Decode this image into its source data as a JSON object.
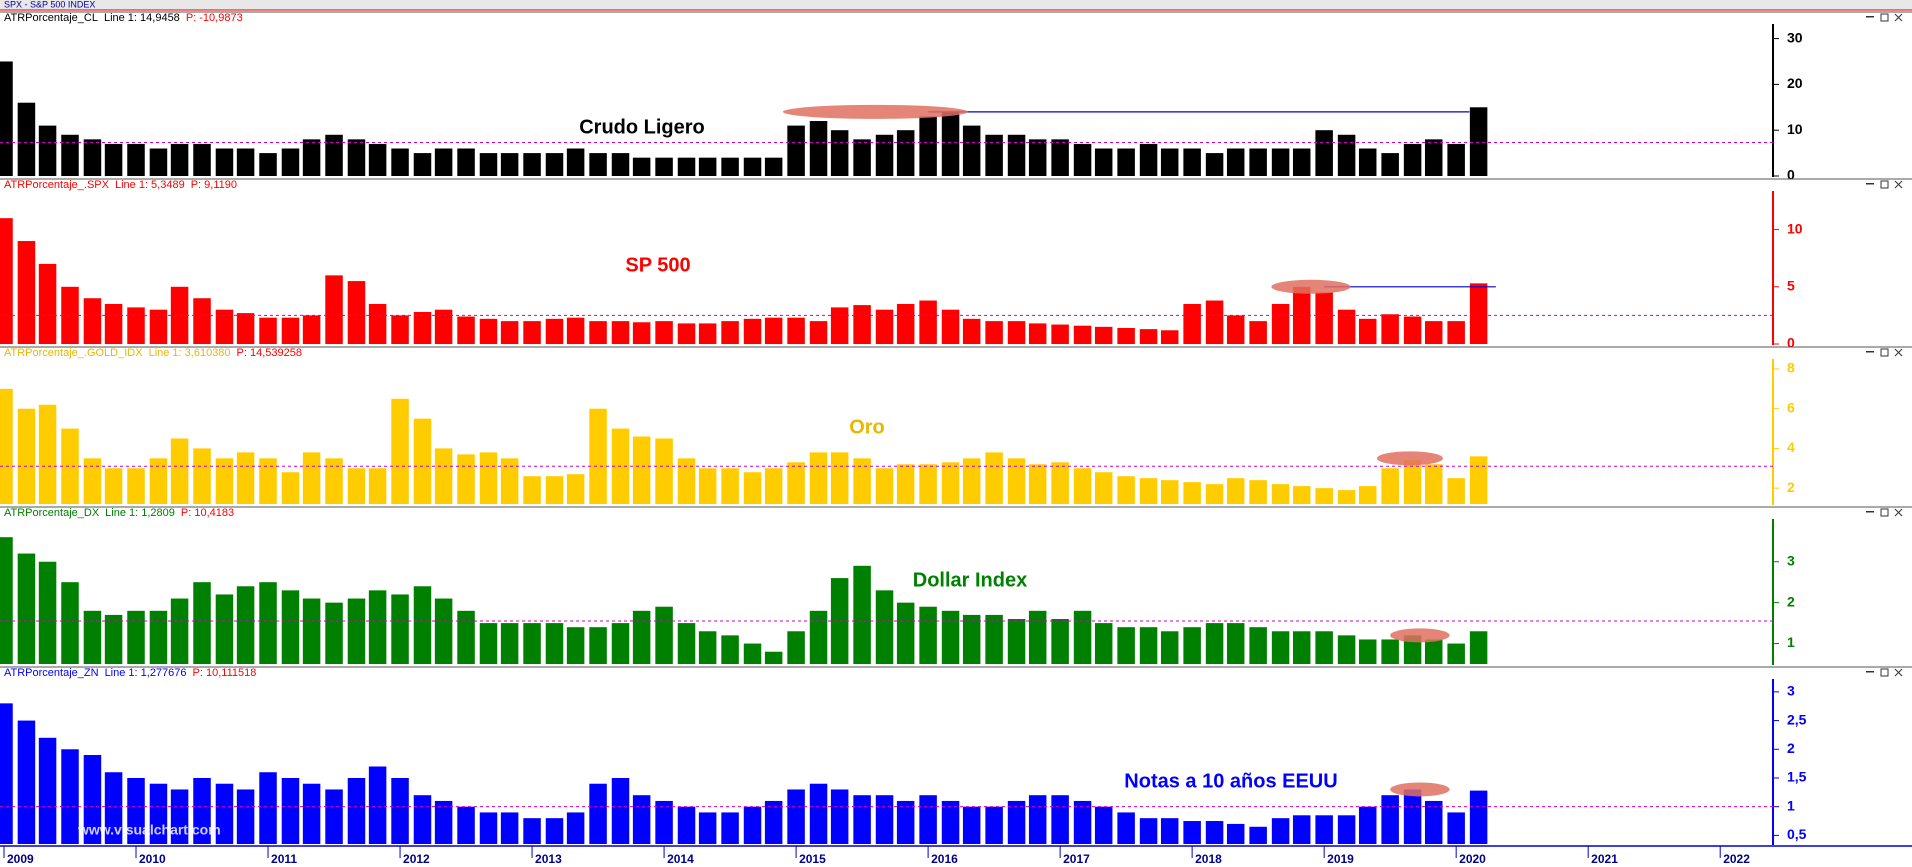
{
  "top_bar": "SPX - S&P 500 INDEX",
  "watermark": "www.visualchart.com",
  "x_axis": {
    "xlim": [
      2009,
      2022.4
    ],
    "xticks": [
      2009,
      2010,
      2011,
      2012,
      2013,
      2014,
      2015,
      2016,
      2017,
      2018,
      2019,
      2020,
      2021,
      2022
    ],
    "x": [
      2009,
      2009.17,
      2009.33,
      2009.5,
      2009.67,
      2009.83,
      2010,
      2010.17,
      2010.33,
      2010.5,
      2010.67,
      2010.83,
      2011,
      2011.17,
      2011.33,
      2011.5,
      2011.67,
      2011.83,
      2012,
      2012.17,
      2012.33,
      2012.5,
      2012.67,
      2012.83,
      2013,
      2013.17,
      2013.33,
      2013.5,
      2013.67,
      2013.83,
      2014,
      2014.17,
      2014.33,
      2014.5,
      2014.67,
      2014.83,
      2015,
      2015.17,
      2015.33,
      2015.5,
      2015.67,
      2015.83,
      2016,
      2016.17,
      2016.33,
      2016.5,
      2016.67,
      2016.83,
      2017,
      2017.17,
      2017.33,
      2017.5,
      2017.67,
      2017.83,
      2018,
      2018.17,
      2018.33,
      2018.5,
      2018.67,
      2018.83,
      2019,
      2019.17,
      2019.33,
      2019.5,
      2019.67,
      2019.83,
      2020,
      2020.17
    ]
  },
  "chart_data": [
    {
      "type": "bar",
      "name": "ATRPorcentaje_CL",
      "line": "Line 1: 14,9458",
      "p": "P: -10,9873",
      "annotation": "Crudo Ligero",
      "color": "#000000",
      "text_color": "#000000",
      "values": [
        25,
        16,
        11,
        9,
        8,
        7,
        7,
        6,
        7,
        7,
        6,
        6,
        5,
        6,
        8,
        9,
        8,
        7,
        6,
        5,
        6,
        6,
        5,
        5,
        5,
        5,
        6,
        5,
        5,
        4,
        4,
        4,
        4,
        4,
        4,
        4,
        11,
        12,
        10,
        8,
        9,
        10,
        13,
        14,
        11,
        9,
        9,
        8,
        8,
        7,
        6,
        6,
        7,
        6,
        6,
        5,
        6,
        6,
        6,
        6,
        10,
        9,
        6,
        5,
        7,
        8,
        7,
        15
      ],
      "ylim": [
        0,
        31
      ],
      "yticks": [
        0,
        10,
        20,
        30
      ],
      "hline": 7.3,
      "ref_line": {
        "x": [
          2016,
          2020.1
        ],
        "y": 14
      },
      "highlight": {
        "x": [
          2014.9,
          2016.3
        ],
        "y": 14
      }
    },
    {
      "type": "bar",
      "name": "ATRPorcentaje_.SPX",
      "line": "Line 1: 5,3489",
      "p": "P: 9,1190",
      "annotation": "SP 500",
      "color": "#ff0000",
      "text_color": "#ff0000",
      "values": [
        11,
        9,
        7,
        5,
        4,
        3.5,
        3.2,
        3,
        5,
        4,
        3,
        2.7,
        2.3,
        2.3,
        2.5,
        6,
        5.5,
        3.5,
        2.5,
        2.8,
        3,
        2.4,
        2.2,
        2,
        2,
        2.2,
        2.3,
        2,
        2,
        1.9,
        2,
        1.8,
        1.8,
        2,
        2.2,
        2.3,
        2.3,
        2,
        3.2,
        3.4,
        3,
        3.5,
        3.8,
        3,
        2.2,
        2,
        2,
        1.8,
        1.7,
        1.6,
        1.5,
        1.4,
        1.3,
        1.2,
        3.5,
        3.8,
        2.5,
        2,
        3.5,
        5,
        4.5,
        3,
        2.2,
        2.6,
        2.4,
        2,
        2,
        5.3
      ],
      "ylim": [
        0,
        12.5
      ],
      "yticks": [
        0,
        5,
        10
      ],
      "hline": 2.5,
      "ref_line": {
        "x": [
          2019,
          2020.3
        ],
        "y": 5
      },
      "highlight": {
        "x": [
          2018.6,
          2019.2
        ],
        "y": 5
      }
    },
    {
      "type": "bar",
      "name": "ATRPorcentaje_.GOLD_IDX",
      "line": "Line 1: 3,610380",
      "p": "P: 14,539258",
      "annotation": "Oro",
      "color": "#ffcc00",
      "text_color": "#e6b800",
      "values": [
        7,
        6,
        6.2,
        5,
        3.5,
        3,
        3,
        3.5,
        4.5,
        4,
        3.5,
        3.8,
        3.5,
        2.8,
        3.8,
        3.5,
        3,
        3,
        6.5,
        5.5,
        4,
        3.7,
        3.8,
        3.5,
        2.6,
        2.6,
        2.7,
        6,
        5,
        4.6,
        4.5,
        3.5,
        3,
        3,
        2.8,
        3,
        3.3,
        3.8,
        3.8,
        3.5,
        3,
        3.2,
        3.2,
        3.3,
        3.5,
        3.8,
        3.5,
        3.2,
        3.3,
        3,
        2.8,
        2.6,
        2.5,
        2.4,
        2.3,
        2.2,
        2.5,
        2.4,
        2.2,
        2.1,
        2,
        1.9,
        2.1,
        3,
        3.4,
        3.2,
        2.5,
        3.6
      ],
      "ylim": [
        1.2,
        8
      ],
      "yticks": [
        2,
        4,
        6,
        8
      ],
      "hline": 3.1,
      "highlight": {
        "x": [
          2019.4,
          2019.9
        ],
        "y": 3.5
      }
    },
    {
      "type": "bar",
      "name": "ATRPorcentaje_DX",
      "line": "Line 1: 1,2809",
      "p": "P: 10,4183",
      "annotation": "Dollar Index",
      "color": "#008000",
      "text_color": "#008000",
      "values": [
        3.6,
        3.2,
        3,
        2.5,
        1.8,
        1.7,
        1.8,
        1.8,
        2.1,
        2.5,
        2.2,
        2.4,
        2.5,
        2.3,
        2.1,
        2,
        2.1,
        2.3,
        2.2,
        2.4,
        2.1,
        1.8,
        1.5,
        1.5,
        1.5,
        1.5,
        1.4,
        1.4,
        1.5,
        1.8,
        1.9,
        1.5,
        1.3,
        1.2,
        1,
        0.8,
        1.3,
        1.8,
        2.6,
        2.9,
        2.3,
        2,
        1.9,
        1.8,
        1.7,
        1.7,
        1.6,
        1.8,
        1.6,
        1.8,
        1.5,
        1.4,
        1.4,
        1.3,
        1.4,
        1.5,
        1.5,
        1.4,
        1.3,
        1.3,
        1.3,
        1.2,
        1.1,
        1.1,
        1.2,
        1.1,
        1,
        1.3
      ],
      "ylim": [
        0.5,
        3.8
      ],
      "yticks": [
        1,
        2,
        3
      ],
      "hline": 1.55,
      "highlight": {
        "x": [
          2019.5,
          2019.95
        ],
        "y": 1.2
      }
    },
    {
      "type": "bar",
      "name": "ATRPorcentaje_ZN",
      "line": "Line 1: 1,277676",
      "p": "P: 10,111518",
      "annotation": "Notas a 10 años EEUU",
      "color": "#0000ff",
      "text_color": "#0000ff",
      "values": [
        2.8,
        2.5,
        2.2,
        2,
        1.9,
        1.6,
        1.5,
        1.4,
        1.3,
        1.5,
        1.4,
        1.3,
        1.6,
        1.5,
        1.4,
        1.3,
        1.5,
        1.7,
        1.5,
        1.2,
        1.1,
        1,
        0.9,
        0.9,
        0.8,
        0.8,
        0.9,
        1.4,
        1.5,
        1.2,
        1.1,
        1,
        0.9,
        0.9,
        1,
        1.1,
        1.3,
        1.4,
        1.3,
        1.2,
        1.2,
        1.1,
        1.2,
        1.1,
        1,
        1,
        1.1,
        1.2,
        1.2,
        1.1,
        1,
        0.9,
        0.8,
        0.8,
        0.75,
        0.75,
        0.7,
        0.65,
        0.8,
        0.85,
        0.85,
        0.85,
        1,
        1.2,
        1.3,
        1.1,
        0.9,
        1.28
      ],
      "ylim": [
        0.35,
        3.05
      ],
      "yticks": [
        {
          "value": 0.5,
          "label": "0,5"
        },
        1,
        {
          "value": 1.5,
          "label": "1,5"
        },
        2,
        {
          "value": 2.5,
          "label": "2,5"
        },
        3
      ],
      "hline": 1.0,
      "highlight": {
        "x": [
          2019.5,
          2019.95
        ],
        "y": 1.3
      }
    }
  ]
}
